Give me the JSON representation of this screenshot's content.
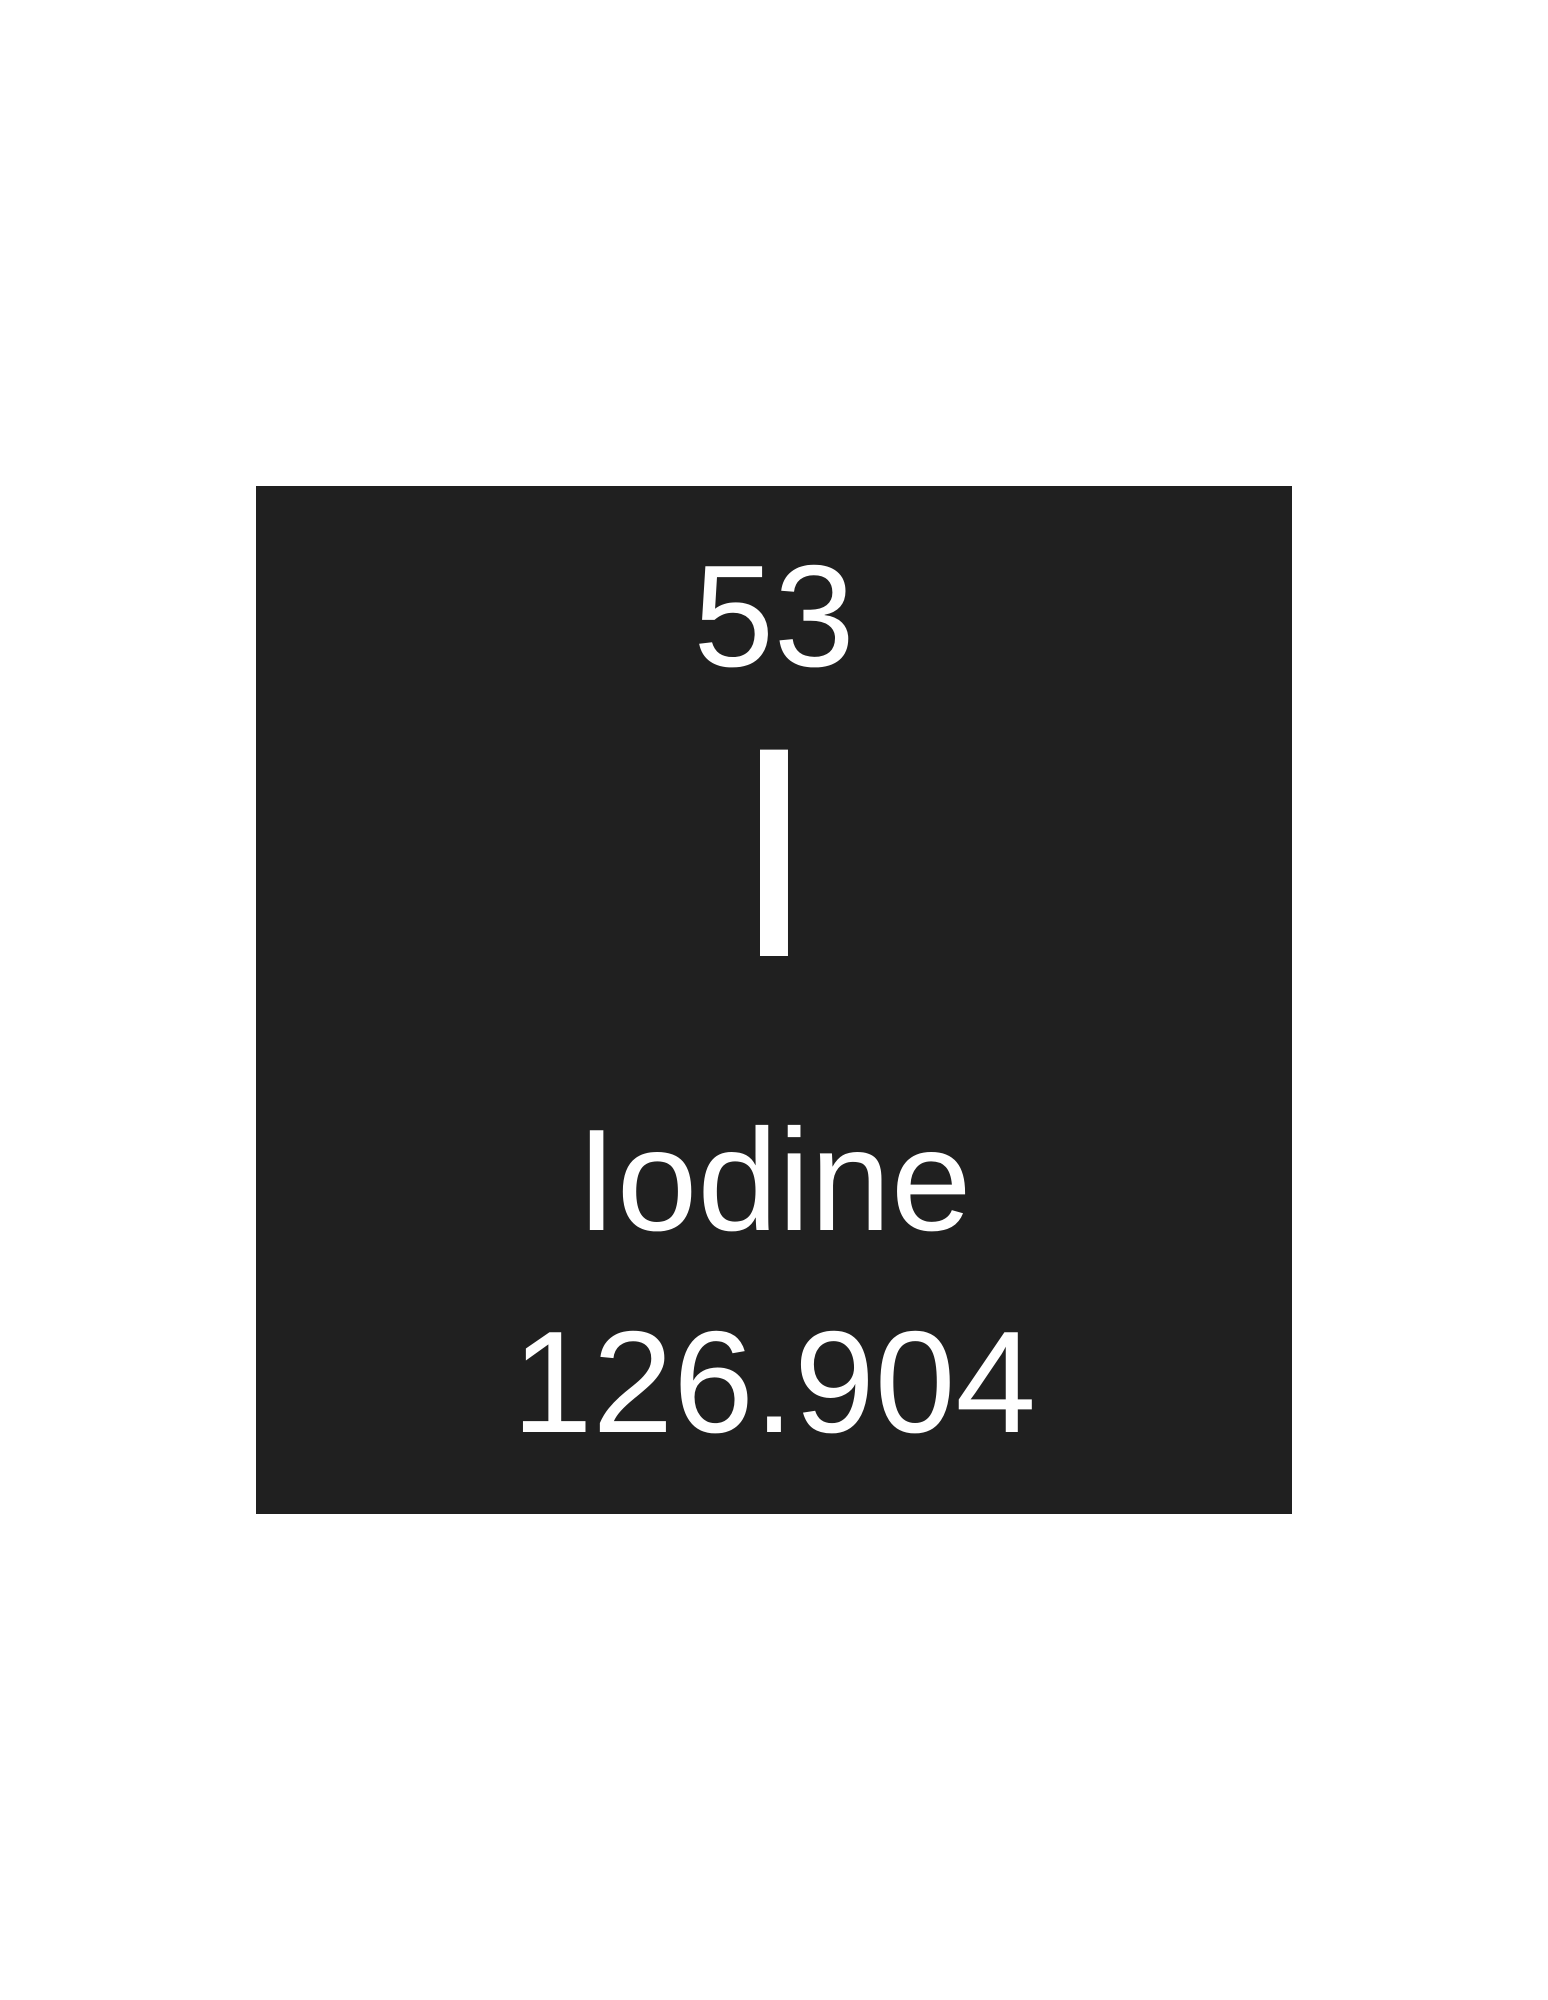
{
  "element": {
    "atomic_number": "53",
    "symbol": "I",
    "name": "Iodine",
    "atomic_mass": "126.904"
  },
  "colors": {
    "page_background": "#ffffff",
    "tile_background": "#202020",
    "text": "#ffffff"
  }
}
